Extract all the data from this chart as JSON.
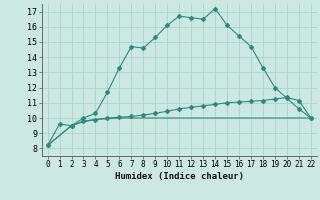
{
  "title": "",
  "xlabel": "Humidex (Indice chaleur)",
  "xlim": [
    -0.5,
    22.5
  ],
  "ylim": [
    7.5,
    17.5
  ],
  "xticks": [
    0,
    1,
    2,
    3,
    4,
    5,
    6,
    7,
    8,
    9,
    10,
    11,
    12,
    13,
    14,
    15,
    16,
    17,
    18,
    19,
    20,
    21,
    22
  ],
  "yticks": [
    8,
    9,
    10,
    11,
    12,
    13,
    14,
    15,
    16,
    17
  ],
  "bg_color": "#cce8e3",
  "grid_color": "#b0d8d2",
  "line_color": "#2e8b7a",
  "line1_x": [
    0,
    1,
    2,
    3,
    4,
    5,
    6,
    7,
    8,
    9,
    10,
    11,
    12,
    13,
    14,
    15,
    16,
    17,
    18,
    19,
    20,
    21,
    22
  ],
  "line1_y": [
    8.2,
    9.6,
    9.5,
    10.0,
    10.3,
    11.7,
    13.3,
    14.7,
    14.6,
    15.3,
    16.1,
    16.7,
    16.6,
    16.5,
    17.2,
    16.1,
    15.4,
    14.7,
    13.3,
    12.0,
    11.3,
    10.6,
    10.0
  ],
  "line2_x": [
    0,
    2,
    3,
    4,
    5,
    6,
    7,
    8,
    9,
    10,
    11,
    12,
    13,
    14,
    15,
    16,
    17,
    18,
    19,
    20,
    21,
    22
  ],
  "line2_y": [
    8.2,
    9.5,
    9.8,
    9.9,
    10.0,
    10.05,
    10.1,
    10.2,
    10.3,
    10.45,
    10.6,
    10.7,
    10.8,
    10.9,
    11.0,
    11.05,
    11.1,
    11.15,
    11.25,
    11.35,
    11.15,
    10.0
  ],
  "line3_x": [
    0,
    2,
    3,
    4,
    5,
    6,
    7,
    8,
    9,
    10,
    11,
    12,
    13,
    14,
    15,
    16,
    17,
    18,
    19,
    20,
    21,
    22
  ],
  "line3_y": [
    8.2,
    9.5,
    9.75,
    9.9,
    9.95,
    10.0,
    10.0,
    10.0,
    10.0,
    10.0,
    10.0,
    10.0,
    10.0,
    10.0,
    10.0,
    10.0,
    10.0,
    10.0,
    10.0,
    10.0,
    10.0,
    10.0
  ]
}
